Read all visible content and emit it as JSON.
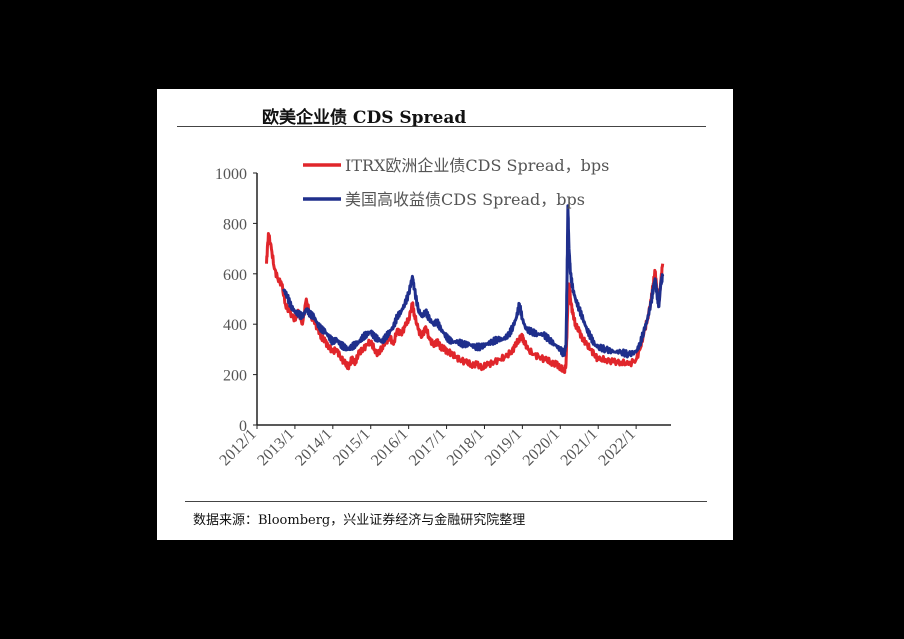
{
  "title": "欧美企业债 CDS Spread",
  "source": "数据来源：Bloomberg，兴业证券经济与金融研究院整理",
  "chart_data": {
    "type": "line",
    "title": "欧美企业债 CDS Spread",
    "xlabel": "",
    "ylabel": "",
    "ylim": [
      0,
      1000
    ],
    "yticks": [
      "0",
      "200",
      "400",
      "600",
      "800",
      "1000"
    ],
    "xticks": [
      "2012/1",
      "2013/1",
      "2014/1",
      "2015/1",
      "2016/1",
      "2017/1",
      "2018/1",
      "2019/1",
      "2020/1",
      "2021/1",
      "2022/1"
    ],
    "legend_position": "top-left",
    "grid": false,
    "series": [
      {
        "name": "ITRX欧洲企业债CDS Spread，bps",
        "color": "#e0262b",
        "points": [
          [
            2012.25,
            640
          ],
          [
            2012.3,
            760
          ],
          [
            2012.38,
            700
          ],
          [
            2012.46,
            620
          ],
          [
            2012.55,
            580
          ],
          [
            2012.65,
            560
          ],
          [
            2012.75,
            480
          ],
          [
            2012.85,
            450
          ],
          [
            2013.0,
            420
          ],
          [
            2013.1,
            450
          ],
          [
            2013.2,
            400
          ],
          [
            2013.3,
            500
          ],
          [
            2013.4,
            430
          ],
          [
            2013.5,
            420
          ],
          [
            2013.6,
            380
          ],
          [
            2013.7,
            350
          ],
          [
            2013.8,
            330
          ],
          [
            2013.9,
            310
          ],
          [
            2014.0,
            290
          ],
          [
            2014.1,
            300
          ],
          [
            2014.2,
            270
          ],
          [
            2014.3,
            250
          ],
          [
            2014.4,
            230
          ],
          [
            2014.5,
            260
          ],
          [
            2014.6,
            250
          ],
          [
            2014.7,
            290
          ],
          [
            2014.8,
            300
          ],
          [
            2014.9,
            320
          ],
          [
            2015.0,
            330
          ],
          [
            2015.1,
            300
          ],
          [
            2015.2,
            280
          ],
          [
            2015.3,
            310
          ],
          [
            2015.4,
            330
          ],
          [
            2015.5,
            350
          ],
          [
            2015.6,
            320
          ],
          [
            2015.7,
            380
          ],
          [
            2015.8,
            360
          ],
          [
            2015.9,
            390
          ],
          [
            2016.0,
            420
          ],
          [
            2016.1,
            480
          ],
          [
            2016.15,
            440
          ],
          [
            2016.25,
            380
          ],
          [
            2016.35,
            350
          ],
          [
            2016.45,
            390
          ],
          [
            2016.55,
            340
          ],
          [
            2016.65,
            320
          ],
          [
            2016.75,
            330
          ],
          [
            2016.85,
            310
          ],
          [
            2016.95,
            300
          ],
          [
            2017.05,
            290
          ],
          [
            2017.15,
            280
          ],
          [
            2017.25,
            270
          ],
          [
            2017.35,
            260
          ],
          [
            2017.5,
            250
          ],
          [
            2017.65,
            240
          ],
          [
            2017.8,
            240
          ],
          [
            2017.95,
            230
          ],
          [
            2018.1,
            240
          ],
          [
            2018.25,
            250
          ],
          [
            2018.4,
            260
          ],
          [
            2018.55,
            270
          ],
          [
            2018.7,
            290
          ],
          [
            2018.8,
            310
          ],
          [
            2018.9,
            340
          ],
          [
            2019.0,
            350
          ],
          [
            2019.05,
            330
          ],
          [
            2019.15,
            300
          ],
          [
            2019.3,
            280
          ],
          [
            2019.45,
            270
          ],
          [
            2019.6,
            260
          ],
          [
            2019.75,
            250
          ],
          [
            2019.9,
            240
          ],
          [
            2020.0,
            230
          ],
          [
            2020.1,
            210
          ],
          [
            2020.15,
            240
          ],
          [
            2020.2,
            480
          ],
          [
            2020.23,
            560
          ],
          [
            2020.27,
            500
          ],
          [
            2020.33,
            440
          ],
          [
            2020.4,
            400
          ],
          [
            2020.5,
            370
          ],
          [
            2020.6,
            340
          ],
          [
            2020.7,
            320
          ],
          [
            2020.8,
            300
          ],
          [
            2020.9,
            280
          ],
          [
            2021.0,
            260
          ],
          [
            2021.2,
            260
          ],
          [
            2021.4,
            250
          ],
          [
            2021.6,
            250
          ],
          [
            2021.8,
            240
          ],
          [
            2022.0,
            260
          ],
          [
            2022.1,
            300
          ],
          [
            2022.2,
            360
          ],
          [
            2022.3,
            420
          ],
          [
            2022.4,
            500
          ],
          [
            2022.45,
            560
          ],
          [
            2022.5,
            610
          ],
          [
            2022.55,
            540
          ],
          [
            2022.6,
            480
          ],
          [
            2022.65,
            570
          ],
          [
            2022.7,
            640
          ]
        ]
      },
      {
        "name": "美国高收益债CDS Spread，bps",
        "color": "#1f2f8c",
        "points": [
          [
            2012.7,
            540
          ],
          [
            2012.8,
            510
          ],
          [
            2012.9,
            470
          ],
          [
            2013.0,
            450
          ],
          [
            2013.1,
            440
          ],
          [
            2013.2,
            430
          ],
          [
            2013.3,
            460
          ],
          [
            2013.4,
            440
          ],
          [
            2013.5,
            430
          ],
          [
            2013.6,
            400
          ],
          [
            2013.7,
            380
          ],
          [
            2013.8,
            370
          ],
          [
            2013.9,
            350
          ],
          [
            2014.0,
            330
          ],
          [
            2014.1,
            340
          ],
          [
            2014.2,
            320
          ],
          [
            2014.3,
            310
          ],
          [
            2014.4,
            300
          ],
          [
            2014.5,
            310
          ],
          [
            2014.6,
            320
          ],
          [
            2014.7,
            330
          ],
          [
            2014.8,
            350
          ],
          [
            2014.9,
            360
          ],
          [
            2015.0,
            370
          ],
          [
            2015.1,
            350
          ],
          [
            2015.2,
            340
          ],
          [
            2015.3,
            330
          ],
          [
            2015.4,
            350
          ],
          [
            2015.5,
            370
          ],
          [
            2015.6,
            390
          ],
          [
            2015.7,
            430
          ],
          [
            2015.8,
            450
          ],
          [
            2015.9,
            480
          ],
          [
            2016.0,
            520
          ],
          [
            2016.1,
            590
          ],
          [
            2016.15,
            540
          ],
          [
            2016.25,
            460
          ],
          [
            2016.35,
            430
          ],
          [
            2016.45,
            450
          ],
          [
            2016.55,
            420
          ],
          [
            2016.65,
            400
          ],
          [
            2016.75,
            410
          ],
          [
            2016.85,
            380
          ],
          [
            2016.95,
            360
          ],
          [
            2017.05,
            340
          ],
          [
            2017.15,
            330
          ],
          [
            2017.3,
            330
          ],
          [
            2017.45,
            320
          ],
          [
            2017.6,
            320
          ],
          [
            2017.75,
            310
          ],
          [
            2017.9,
            310
          ],
          [
            2018.05,
            320
          ],
          [
            2018.2,
            330
          ],
          [
            2018.35,
            340
          ],
          [
            2018.5,
            340
          ],
          [
            2018.65,
            360
          ],
          [
            2018.75,
            390
          ],
          [
            2018.85,
            430
          ],
          [
            2018.92,
            480
          ],
          [
            2019.0,
            420
          ],
          [
            2019.1,
            380
          ],
          [
            2019.25,
            370
          ],
          [
            2019.4,
            360
          ],
          [
            2019.55,
            360
          ],
          [
            2019.7,
            340
          ],
          [
            2019.85,
            320
          ],
          [
            2020.0,
            300
          ],
          [
            2020.1,
            280
          ],
          [
            2020.15,
            320
          ],
          [
            2020.18,
            600
          ],
          [
            2020.2,
            870
          ],
          [
            2020.23,
            700
          ],
          [
            2020.27,
            600
          ],
          [
            2020.33,
            540
          ],
          [
            2020.4,
            500
          ],
          [
            2020.5,
            460
          ],
          [
            2020.6,
            420
          ],
          [
            2020.7,
            380
          ],
          [
            2020.8,
            350
          ],
          [
            2020.9,
            320
          ],
          [
            2021.0,
            310
          ],
          [
            2021.2,
            300
          ],
          [
            2021.4,
            290
          ],
          [
            2021.6,
            290
          ],
          [
            2021.8,
            280
          ],
          [
            2022.0,
            290
          ],
          [
            2022.1,
            320
          ],
          [
            2022.2,
            370
          ],
          [
            2022.3,
            420
          ],
          [
            2022.4,
            490
          ],
          [
            2022.45,
            540
          ],
          [
            2022.5,
            580
          ],
          [
            2022.55,
            520
          ],
          [
            2022.6,
            470
          ],
          [
            2022.65,
            560
          ],
          [
            2022.7,
            590
          ]
        ]
      }
    ]
  }
}
